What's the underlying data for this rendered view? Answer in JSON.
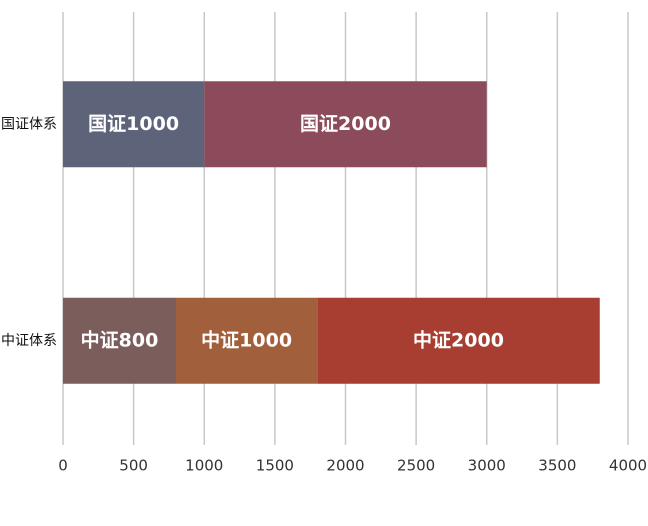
{
  "chart_data": {
    "type": "stacked-barh",
    "categories": [
      "国证体系",
      "中证体系"
    ],
    "series": [
      {
        "name": "国证1000",
        "color": "#5d6479",
        "values": [
          1000,
          null
        ]
      },
      {
        "name": "国证2000",
        "color": "#8b4b5b",
        "values": [
          2000,
          null
        ]
      },
      {
        "name": "中证800",
        "color": "#7b5d5b",
        "values": [
          null,
          800
        ]
      },
      {
        "name": "中证1000",
        "color": "#a1603b",
        "values": [
          null,
          1000
        ]
      },
      {
        "name": "中证2000",
        "color": "#a83d31",
        "values": [
          null,
          2000
        ]
      }
    ],
    "xlim": [
      0,
      4000
    ],
    "xticks": [
      0,
      500,
      1000,
      1500,
      2000,
      2500,
      3000,
      3500,
      4000
    ],
    "grid": true
  }
}
